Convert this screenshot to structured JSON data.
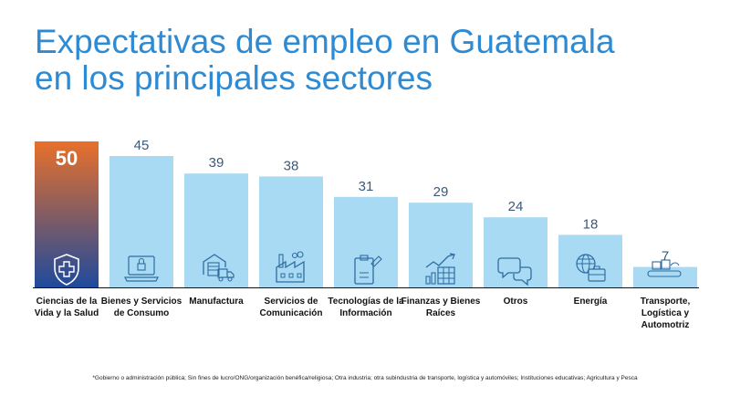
{
  "title": {
    "line1": "Expectativas de empleo en Guatemala",
    "line2": "en los principales sectores"
  },
  "chart_data": {
    "type": "bar",
    "categories": [
      [
        "Ciencias de la",
        "Vida y la Salud"
      ],
      [
        "Bienes y Servicios",
        "de Consumo"
      ],
      [
        "Manufactura"
      ],
      [
        "Servicios de",
        "Comunicación"
      ],
      [
        "Tecnologías de la",
        "Información"
      ],
      [
        "Finanzas y Bienes",
        "Raíces"
      ],
      [
        "Otros"
      ],
      [
        "Energía"
      ],
      [
        "Transporte,",
        "Logística y",
        "Automotriz"
      ]
    ],
    "values": [
      50,
      45,
      39,
      38,
      31,
      29,
      24,
      18,
      7
    ],
    "icons": [
      "shield-cross-icon",
      "laptop-lock-icon",
      "warehouse-truck-icon",
      "factory-icon",
      "clipboard-pen-icon",
      "bar-chart-icon",
      "chat-bubbles-icon",
      "globe-briefcase-icon",
      "conveyor-boxes-icon"
    ],
    "highlight_index": 0,
    "ylim": [
      0,
      50
    ],
    "grid": false,
    "colors": {
      "bar": "#a8daf4",
      "highlight_top": "#e8702a",
      "highlight_bottom": "#1f4a9c",
      "value_label": "#3a5a78",
      "icon": "#2f6ca0",
      "baseline": "#111111"
    }
  },
  "footnote": "*Gobierno o administración pública; Sin fines de lucro/ONG/organización benéfica/religiosa; Otra industria; otra subindustria de transporte, logística y automóviles; Instituciones educativas; Agricultura y Pesca"
}
